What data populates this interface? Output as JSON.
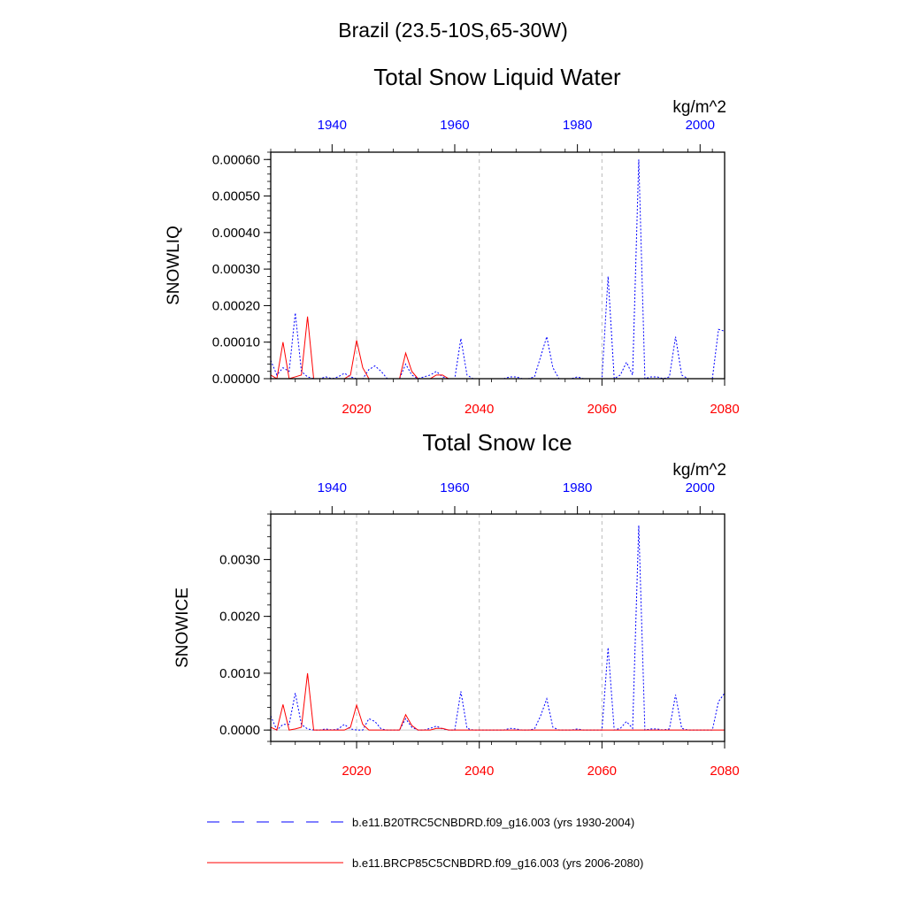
{
  "figure": {
    "title": "Brazil (23.5-10S,65-30W)"
  },
  "legend": {
    "placement": "bottom",
    "items": [
      {
        "label": "b.e11.B20TRC5CNBDRD.f09_g16.003 (yrs 1930-2004)",
        "color": "#0000ff",
        "style": "dashed"
      },
      {
        "label": "b.e11.BRCP85C5CNBDRD.f09_g16.003 (yrs 2006-2080)",
        "color": "#ff0000",
        "style": "solid"
      }
    ]
  },
  "chart_data": [
    {
      "type": "line",
      "title": "Total Snow Liquid Water",
      "units": "kg/m^2",
      "ylabel": "SNOWLIQ",
      "ylim": [
        0,
        0.00062
      ],
      "yticks": [
        0,
        0.0001,
        0.0002,
        0.0003,
        0.0004,
        0.0005,
        0.0006
      ],
      "ytick_labels": [
        "0.00000",
        "0.00010",
        "0.00020",
        "0.00030",
        "0.00040",
        "0.00050",
        "0.00060"
      ],
      "bottom_axis": {
        "range": [
          2006,
          2080
        ],
        "ticks": [
          2020,
          2040,
          2060,
          2080
        ],
        "color": "#ff0000"
      },
      "top_axis": {
        "range": [
          1930,
          2004
        ],
        "ticks": [
          1940,
          1960,
          1980,
          2000
        ],
        "color": "#0000ff"
      },
      "grid": "vertical-dashed",
      "series": [
        {
          "name": "b.e11.B20TRC5CNBDRD.f09_g16.003 (yrs 1930-2004)",
          "color": "#0000ff",
          "style": "dashed",
          "x": [
            1930,
            1931,
            1932,
            1933,
            1934,
            1935,
            1936,
            1937,
            1938,
            1939,
            1940,
            1941,
            1942,
            1943,
            1944,
            1945,
            1946,
            1947,
            1948,
            1949,
            1950,
            1951,
            1952,
            1953,
            1954,
            1955,
            1956,
            1957,
            1958,
            1959,
            1960,
            1961,
            1962,
            1963,
            1964,
            1965,
            1966,
            1967,
            1968,
            1969,
            1970,
            1971,
            1972,
            1973,
            1974,
            1975,
            1976,
            1977,
            1978,
            1979,
            1980,
            1981,
            1982,
            1983,
            1984,
            1985,
            1986,
            1987,
            1988,
            1989,
            1990,
            1991,
            1992,
            1993,
            1994,
            1995,
            1996,
            1997,
            1998,
            1999,
            2000,
            2001,
            2002,
            2003,
            2004
          ],
          "values": [
            5e-05,
            1e-05,
            3e-05,
            2e-05,
            0.00018,
            2e-05,
            5e-06,
            0,
            0,
            5e-06,
            0,
            5e-06,
            1.5e-05,
            5e-06,
            0,
            0,
            2.5e-05,
            3.5e-05,
            2e-05,
            0,
            0,
            0,
            4e-05,
            1e-05,
            0,
            5e-06,
            1e-05,
            2e-05,
            5e-06,
            0,
            0,
            0.00011,
            1e-05,
            0,
            0,
            0,
            0,
            0,
            0,
            5e-06,
            5e-06,
            0,
            0,
            5e-06,
            6e-05,
            0.000115,
            3e-05,
            0,
            0,
            0,
            5e-06,
            0,
            0,
            0,
            0,
            0.00028,
            0,
            1e-05,
            4.5e-05,
            1e-05,
            0.0006,
            0,
            5e-06,
            5e-06,
            0,
            5e-06,
            0.000115,
            1e-05,
            0,
            0,
            0,
            0,
            0,
            0.000135,
            0.00013
          ]
        },
        {
          "name": "b.e11.BRCP85C5CNBDRD.f09_g16.003 (yrs 2006-2080)",
          "color": "#ff0000",
          "style": "solid",
          "x": [
            2006,
            2007,
            2008,
            2009,
            2010,
            2011,
            2012,
            2013,
            2014,
            2015,
            2016,
            2017,
            2018,
            2019,
            2020,
            2021,
            2022,
            2023,
            2024,
            2025,
            2026,
            2027,
            2028,
            2029,
            2030,
            2031,
            2032,
            2033,
            2034,
            2035,
            2036,
            2037,
            2038,
            2039,
            2040,
            2041,
            2042,
            2043,
            2044,
            2045,
            2046,
            2047,
            2048,
            2049,
            2050,
            2051,
            2052,
            2053,
            2054,
            2055,
            2056,
            2057,
            2058,
            2059,
            2060,
            2061,
            2062,
            2063,
            2064,
            2065,
            2066,
            2067,
            2068,
            2069,
            2070,
            2071,
            2072,
            2073,
            2074,
            2075,
            2076,
            2077,
            2078,
            2079,
            2080
          ],
          "values": [
            1e-05,
            0,
            0.0001,
            0,
            5e-06,
            1e-05,
            0.00017,
            0,
            0,
            0,
            0,
            0,
            0,
            1e-05,
            0.000105,
            3e-05,
            0,
            0,
            0,
            0,
            0,
            0,
            7e-05,
            2e-05,
            0,
            0,
            0,
            1e-05,
            1e-05,
            0,
            0,
            0,
            0,
            0,
            0,
            0,
            0,
            0,
            0,
            0,
            0,
            0,
            0,
            0,
            0,
            0,
            0,
            0,
            0,
            0,
            0,
            0,
            0,
            0,
            0,
            0,
            0,
            0,
            0,
            0,
            0,
            0,
            0,
            0,
            0,
            0,
            0,
            0,
            0,
            0,
            0,
            0,
            0,
            0,
            0
          ]
        }
      ]
    },
    {
      "type": "line",
      "title": "Total Snow Ice",
      "units": "kg/m^2",
      "ylabel": "SNOWICE",
      "ylim": [
        -0.0002,
        0.0038
      ],
      "yticks": [
        0,
        0.001,
        0.002,
        0.003
      ],
      "ytick_labels": [
        "0.0000",
        "0.0010",
        "0.0020",
        "0.0030"
      ],
      "bottom_axis": {
        "range": [
          2006,
          2080
        ],
        "ticks": [
          2020,
          2040,
          2060,
          2080
        ],
        "color": "#ff0000"
      },
      "top_axis": {
        "range": [
          1930,
          2004
        ],
        "ticks": [
          1940,
          1960,
          1980,
          2000
        ],
        "color": "#0000ff"
      },
      "grid": "vertical-dashed",
      "series": [
        {
          "name": "b.e11.B20TRC5CNBDRD.f09_g16.003 (yrs 1930-2004)",
          "color": "#0000ff",
          "style": "dashed",
          "x": [
            1930,
            1931,
            1932,
            1933,
            1934,
            1935,
            1936,
            1937,
            1938,
            1939,
            1940,
            1941,
            1942,
            1943,
            1944,
            1945,
            1946,
            1947,
            1948,
            1949,
            1950,
            1951,
            1952,
            1953,
            1954,
            1955,
            1956,
            1957,
            1958,
            1959,
            1960,
            1961,
            1962,
            1963,
            1964,
            1965,
            1966,
            1967,
            1968,
            1969,
            1970,
            1971,
            1972,
            1973,
            1974,
            1975,
            1976,
            1977,
            1978,
            1979,
            1980,
            1981,
            1982,
            1983,
            1984,
            1985,
            1986,
            1987,
            1988,
            1989,
            1990,
            1991,
            1992,
            1993,
            1994,
            1995,
            1996,
            1997,
            1998,
            1999,
            2000,
            2001,
            2002,
            2003,
            2004
          ],
          "values": [
            0.00025,
            0,
            0.0001,
            0.0001,
            0.00065,
            0.0001,
            2e-05,
            0,
            0,
            2e-05,
            0,
            2e-05,
            0.0001,
            2e-05,
            0,
            0,
            0.0002,
            0.00015,
            2e-05,
            0,
            0,
            0,
            0.0002,
            5e-05,
            0,
            0,
            3e-05,
            7e-05,
            2e-05,
            0,
            0,
            0.00068,
            3e-05,
            0,
            0,
            0,
            0,
            0,
            0,
            3e-05,
            2e-05,
            0,
            0,
            2e-05,
            0.00025,
            0.00055,
            5e-05,
            0,
            0,
            0,
            2e-05,
            0,
            0,
            0,
            0,
            0.00145,
            0,
            3e-05,
            0.00015,
            3e-05,
            0.0036,
            0,
            2e-05,
            2e-05,
            0,
            2e-05,
            0.00062,
            3e-05,
            0,
            0,
            0,
            0,
            0,
            0.0005,
            0.00065
          ]
        },
        {
          "name": "b.e11.BRCP85C5CNBDRD.f09_g16.003 (yrs 2006-2080)",
          "color": "#ff0000",
          "style": "solid",
          "x": [
            2006,
            2007,
            2008,
            2009,
            2010,
            2011,
            2012,
            2013,
            2014,
            2015,
            2016,
            2017,
            2018,
            2019,
            2020,
            2021,
            2022,
            2023,
            2024,
            2025,
            2026,
            2027,
            2028,
            2029,
            2030,
            2031,
            2032,
            2033,
            2034,
            2035,
            2036,
            2037,
            2038,
            2039,
            2040,
            2041,
            2042,
            2043,
            2044,
            2045,
            2046,
            2047,
            2048,
            2049,
            2050,
            2051,
            2052,
            2053,
            2054,
            2055,
            2056,
            2057,
            2058,
            2059,
            2060,
            2061,
            2062,
            2063,
            2064,
            2065,
            2066,
            2067,
            2068,
            2069,
            2070,
            2071,
            2072,
            2073,
            2074,
            2075,
            2076,
            2077,
            2078,
            2079,
            2080
          ],
          "values": [
            5e-05,
            0,
            0.00045,
            0,
            2e-05,
            5e-05,
            0.001,
            0,
            0,
            0,
            0,
            0,
            0,
            5e-05,
            0.00044,
            0.0001,
            0,
            0,
            0,
            0,
            0,
            0,
            0.00027,
            8e-05,
            0,
            0,
            0,
            3e-05,
            3e-05,
            0,
            0,
            0,
            0,
            0,
            0,
            0,
            0,
            0,
            0,
            0,
            0,
            0,
            0,
            0,
            0,
            0,
            0,
            0,
            0,
            0,
            0,
            0,
            0,
            0,
            0,
            0,
            0,
            0,
            0,
            0,
            0,
            0,
            0,
            0,
            0,
            0,
            0,
            0,
            0,
            0,
            0,
            0,
            0,
            0,
            0
          ]
        }
      ]
    }
  ]
}
